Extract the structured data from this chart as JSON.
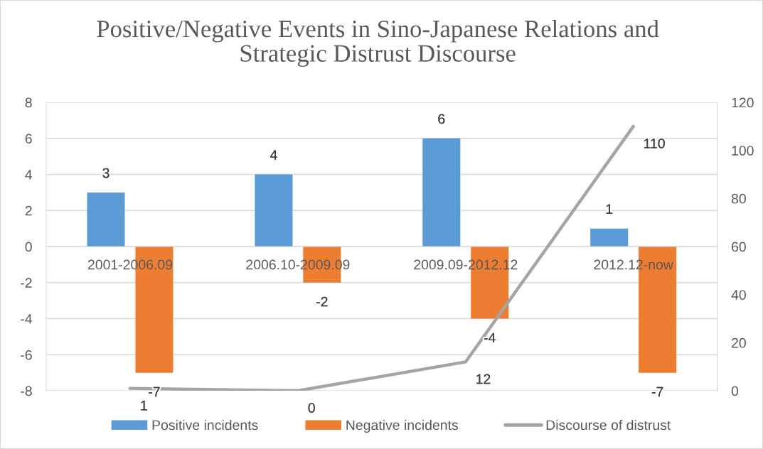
{
  "chart_data": {
    "type": "bar",
    "title": "Positive/Negative Events in Sino-Japanese Relations and\nStrategic Distrust Discourse",
    "categories": [
      "2001-2006.09",
      "2006.10-2009.09",
      "2009.09-2012.12",
      "2012.12-now"
    ],
    "series": [
      {
        "name": "Positive incidents",
        "color": "#5b9bd5",
        "values": [
          3,
          4,
          6,
          1
        ]
      },
      {
        "name": "Negative incidents",
        "color": "#ed7d31",
        "values": [
          -7,
          -2,
          -4,
          -7
        ]
      },
      {
        "name": "Discourse of distrust",
        "type": "line",
        "axis": "y2",
        "color": "#a5a5a5",
        "values": [
          1,
          0,
          12,
          110
        ]
      }
    ],
    "ylim": [
      -8,
      8
    ],
    "yticks": [
      -8,
      -6,
      -4,
      -2,
      0,
      2,
      4,
      6,
      8
    ],
    "y2lim": [
      0,
      120
    ],
    "y2ticks": [
      0,
      20,
      40,
      60,
      80,
      100,
      120
    ],
    "grid": "y",
    "legend": "bottom",
    "data_labels": true
  }
}
